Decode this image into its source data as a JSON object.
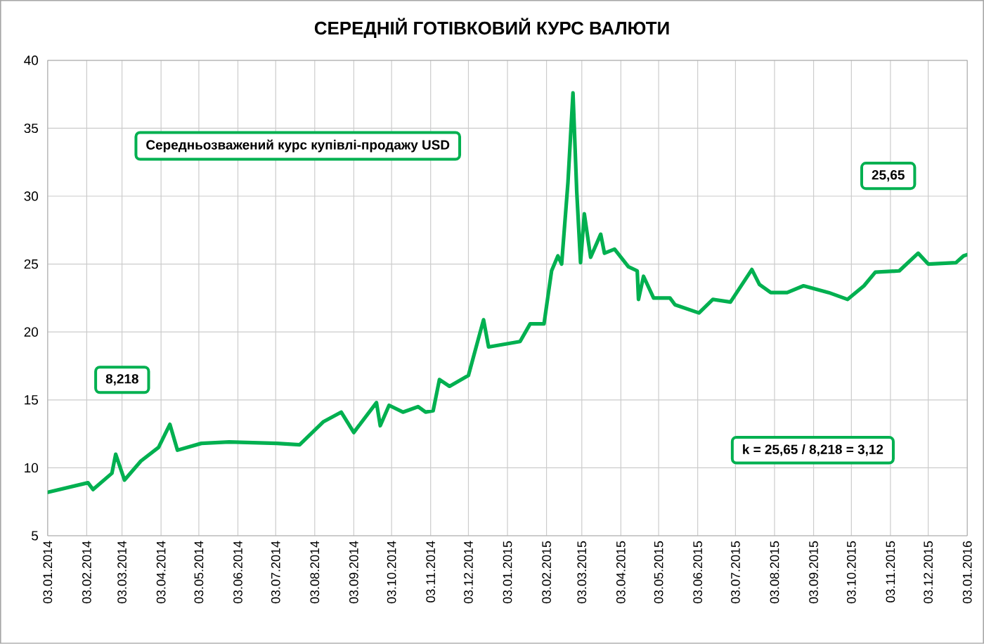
{
  "chart_data": {
    "type": "line",
    "title": "СЕРЕДНІЙ ГОТІВКОВИЙ КУРС ВАЛЮТИ",
    "annotations": [
      "Середньозважений курс купівлі-продажу USD",
      "8,218",
      "25,65",
      "k = 25,65 / 8,218 = 3,12"
    ],
    "x": [
      "2014-01-03",
      "2014-02-04",
      "2014-02-08",
      "2014-02-23",
      "2014-02-26",
      "2014-03-05",
      "2014-03-18",
      "2014-04-01",
      "2014-04-10",
      "2014-04-16",
      "2014-05-05",
      "2014-05-27",
      "2014-07-04",
      "2014-07-22",
      "2014-08-10",
      "2014-08-24",
      "2014-09-03",
      "2014-09-21",
      "2014-09-24",
      "2014-10-01",
      "2014-10-12",
      "2014-10-24",
      "2014-10-30",
      "2014-11-05",
      "2014-11-10",
      "2014-11-18",
      "2014-12-03",
      "2014-12-15",
      "2014-12-19",
      "2015-01-13",
      "2015-01-21",
      "2015-02-01",
      "2015-02-07",
      "2015-02-12",
      "2015-02-15",
      "2015-02-20",
      "2015-02-24",
      "2015-02-27",
      "2015-03-02",
      "2015-03-05",
      "2015-03-10",
      "2015-03-18",
      "2015-03-21",
      "2015-03-29",
      "2015-04-09",
      "2015-04-16",
      "2015-04-17",
      "2015-04-21",
      "2015-04-29",
      "2015-05-12",
      "2015-05-16",
      "2015-06-04",
      "2015-06-15",
      "2015-06-29",
      "2015-07-16",
      "2015-07-22",
      "2015-07-31",
      "2015-08-13",
      "2015-08-26",
      "2015-09-15",
      "2015-09-30",
      "2015-10-13",
      "2015-10-22",
      "2015-11-10",
      "2015-11-25",
      "2015-12-03",
      "2015-12-25",
      "2015-12-31",
      "2016-01-03"
    ],
    "series": [
      {
        "color": "#00b050",
        "values": [
          8.2,
          8.9,
          8.4,
          9.6,
          11.0,
          9.1,
          10.5,
          11.5,
          13.2,
          11.3,
          11.8,
          11.9,
          11.8,
          11.7,
          13.4,
          14.1,
          12.6,
          14.8,
          13.1,
          14.6,
          14.1,
          14.5,
          14.1,
          14.2,
          16.5,
          16.0,
          16.8,
          20.9,
          18.9,
          19.3,
          20.6,
          20.6,
          24.5,
          25.6,
          25.0,
          31.0,
          37.6,
          30.3,
          25.1,
          28.7,
          25.5,
          27.2,
          25.8,
          26.1,
          24.8,
          24.5,
          22.4,
          24.1,
          22.5,
          22.5,
          22.0,
          21.4,
          22.4,
          22.2,
          24.6,
          23.5,
          22.9,
          22.9,
          23.4,
          22.9,
          22.4,
          23.4,
          24.4,
          24.5,
          25.8,
          25.0,
          25.1,
          25.6,
          25.7
        ]
      }
    ],
    "xlim": [
      "2014-01-03",
      "2016-01-03"
    ],
    "xticks": [
      {
        "value": "2014-01-03",
        "label": "03.01.2014"
      },
      {
        "value": "2014-02-03",
        "label": "03.02.2014"
      },
      {
        "value": "2014-03-03",
        "label": "03.03.2014"
      },
      {
        "value": "2014-04-03",
        "label": "03.04.2014"
      },
      {
        "value": "2014-05-03",
        "label": "03.05.2014"
      },
      {
        "value": "2014-06-03",
        "label": "03.06.2014"
      },
      {
        "value": "2014-07-03",
        "label": "03.07.2014"
      },
      {
        "value": "2014-08-03",
        "label": "03.08.2014"
      },
      {
        "value": "2014-09-03",
        "label": "03.09.2014"
      },
      {
        "value": "2014-10-03",
        "label": "03.10.2014"
      },
      {
        "value": "2014-11-03",
        "label": "03.11.2014"
      },
      {
        "value": "2014-12-03",
        "label": "03.12.2014"
      },
      {
        "value": "2015-01-03",
        "label": "03.01.2015"
      },
      {
        "value": "2015-02-03",
        "label": "03.02.2015"
      },
      {
        "value": "2015-03-03",
        "label": "03.03.2015"
      },
      {
        "value": "2015-04-03",
        "label": "03.04.2015"
      },
      {
        "value": "2015-05-03",
        "label": "03.05.2015"
      },
      {
        "value": "2015-06-03",
        "label": "03.06.2015"
      },
      {
        "value": "2015-07-03",
        "label": "03.07.2015"
      },
      {
        "value": "2015-08-03",
        "label": "03.08.2015"
      },
      {
        "value": "2015-09-03",
        "label": "03.09.2015"
      },
      {
        "value": "2015-10-03",
        "label": "03.10.2015"
      },
      {
        "value": "2015-11-03",
        "label": "03.11.2015"
      },
      {
        "value": "2015-12-03",
        "label": "03.12.2015"
      },
      {
        "value": "2016-01-03",
        "label": "03.01.2016"
      }
    ],
    "ylim": [
      5,
      40
    ],
    "yticks": [
      5,
      10,
      15,
      20,
      25,
      30,
      35,
      40
    ],
    "grid": true,
    "marker": "none",
    "line_style": "solid"
  }
}
